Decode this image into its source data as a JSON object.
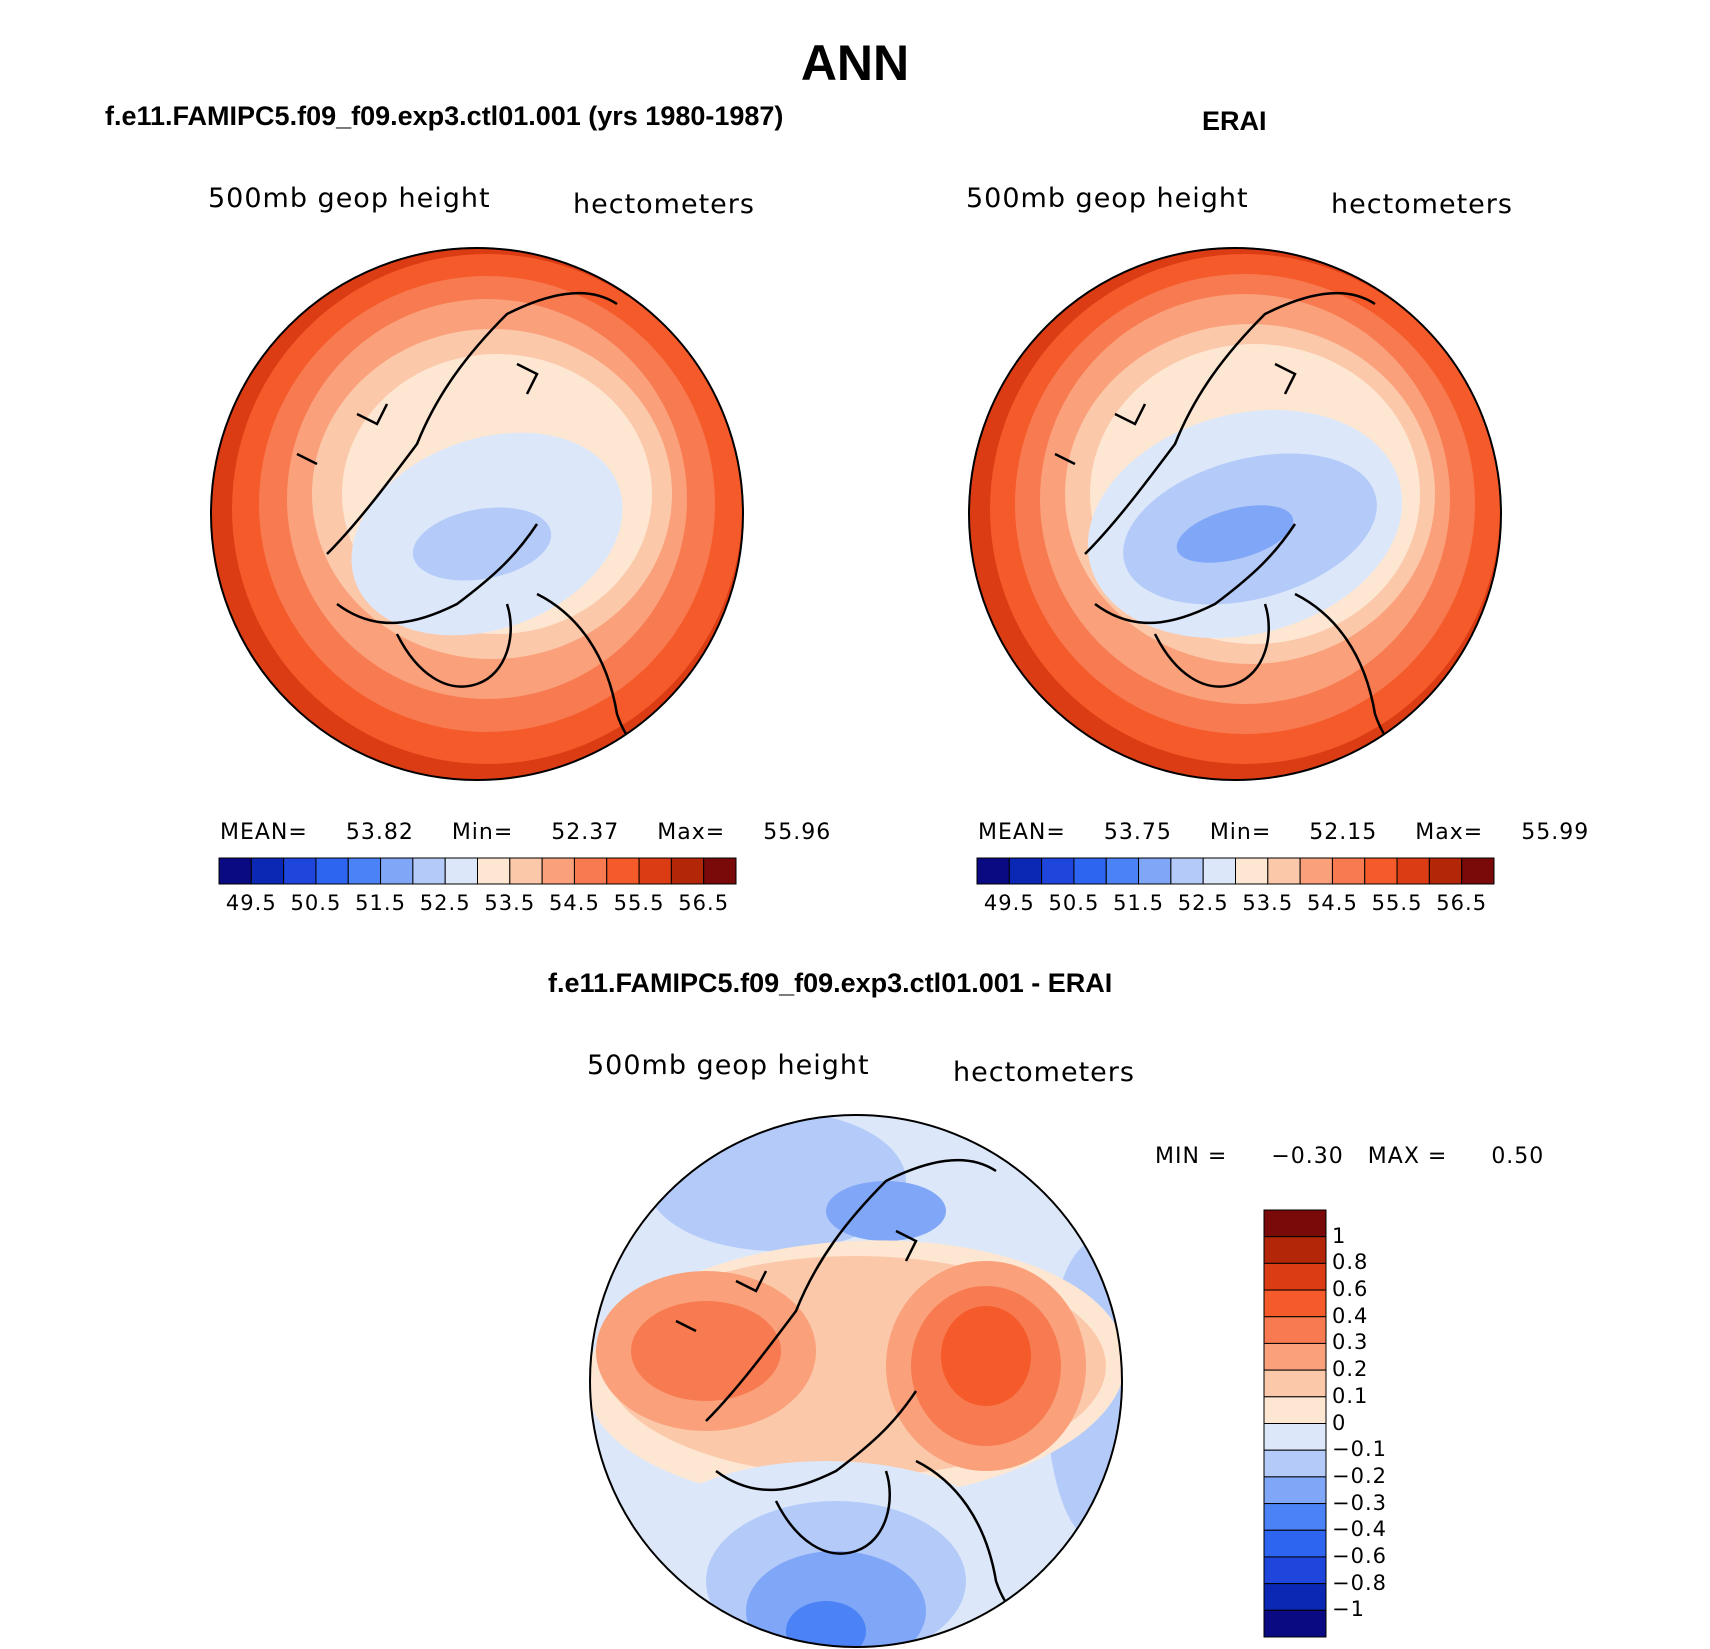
{
  "figure": {
    "season": "ANN",
    "panels": [
      {
        "title": "f.e11.FAMIPC5.f09_f09.exp3.ctl01.001 (yrs 1980-1987)",
        "variable": "500mb geop height",
        "units": "hectometers",
        "stats": {
          "mean_label": "MEAN=",
          "mean": "53.82",
          "min_label": "Min=",
          "min": "52.37",
          "max_label": "Max=",
          "max": "55.96"
        }
      },
      {
        "title": "ERAI",
        "variable": "500mb geop height",
        "units": "hectometers",
        "stats": {
          "mean_label": "MEAN=",
          "mean": "53.75",
          "min_label": "Min=",
          "min": "52.15",
          "max_label": "Max=",
          "max": "55.99"
        }
      },
      {
        "title": "f.e11.FAMIPC5.f09_f09.exp3.ctl01.001 - ERAI",
        "variable": "500mb geop height",
        "units": "hectometers",
        "stats": {
          "min_label": "MIN =",
          "min": "−0.30",
          "max_label": "MAX =",
          "max": "0.50"
        }
      }
    ],
    "colorbar_abs": {
      "ticks": [
        "49.5",
        "50.5",
        "51.5",
        "52.5",
        "53.5",
        "54.5",
        "55.5",
        "56.5"
      ],
      "colors": [
        "#0a0a82",
        "#0a28b4",
        "#1e46dc",
        "#2d64f0",
        "#4b82f5",
        "#7fa6f7",
        "#b4cbf9",
        "#dce8fa",
        "#fde6d2",
        "#fcc8aa",
        "#faa07a",
        "#f87a50",
        "#f55a2a",
        "#dc3c14",
        "#b42608",
        "#7a0a0a"
      ]
    },
    "colorbar_diff": {
      "ticks": [
        "1",
        "0.8",
        "0.6",
        "0.4",
        "0.3",
        "0.2",
        "0.1",
        "0",
        "−0.1",
        "−0.2",
        "−0.3",
        "−0.4",
        "−0.6",
        "−0.8",
        "−1"
      ],
      "colors": [
        "#7a0a0a",
        "#b42608",
        "#dc3c14",
        "#f55a2a",
        "#f87a50",
        "#faa07a",
        "#fcc8aa",
        "#fde6d2",
        "#dce8fa",
        "#b4cbf9",
        "#7fa6f7",
        "#4b82f5",
        "#2d64f0",
        "#1e46dc",
        "#0a28b4",
        "#0a0a82"
      ]
    }
  }
}
